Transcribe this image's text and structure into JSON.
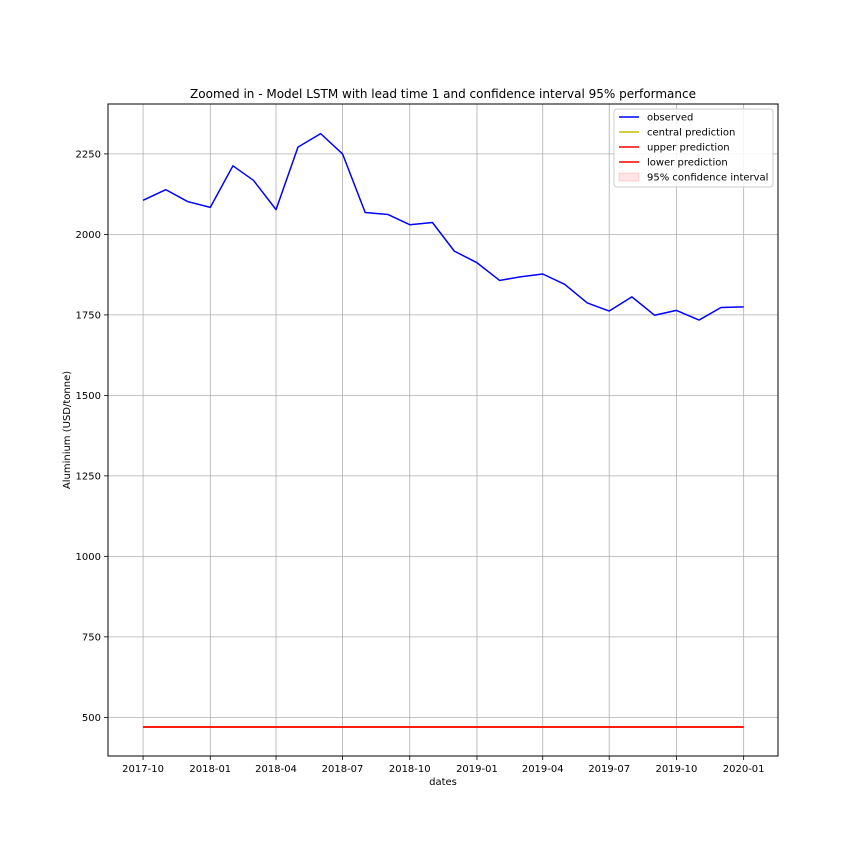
{
  "chart_data": {
    "type": "line",
    "title": "Zoomed in - Model LSTM with lead time 1 and confidence interval 95% performance",
    "xlabel": "dates",
    "ylabel": "Aluminium (USD/tonne)",
    "x": [
      "2017-10",
      "2017-11",
      "2017-12",
      "2018-01",
      "2018-02",
      "2018-03",
      "2018-04",
      "2018-05",
      "2018-06",
      "2018-07",
      "2018-08",
      "2018-09",
      "2018-10",
      "2018-11",
      "2018-12",
      "2019-01",
      "2019-02",
      "2019-03",
      "2019-04",
      "2019-05",
      "2019-06",
      "2019-07",
      "2019-08",
      "2019-09",
      "2019-10",
      "2019-11",
      "2019-12",
      "2020-01"
    ],
    "xticks": [
      "2017-10",
      "2018-01",
      "2018-04",
      "2018-07",
      "2018-10",
      "2019-01",
      "2019-04",
      "2019-07",
      "2019-10",
      "2020-01"
    ],
    "xlim": [
      "2017-08-14",
      "2020-02-17"
    ],
    "yticks": [
      500,
      750,
      1000,
      1250,
      1500,
      1750,
      2000,
      2250
    ],
    "ylim": [
      380,
      2405
    ],
    "grid": true,
    "legend_position": "top-right",
    "series": [
      {
        "name": "observed",
        "color": "#0000ff",
        "values": [
          2106,
          2139,
          2102,
          2084,
          2213,
          2168,
          2077,
          2271,
          2313,
          2250,
          2068,
          2062,
          2030,
          2037,
          1948,
          1912,
          1857,
          1868,
          1877,
          1845,
          1787,
          1762,
          1806,
          1749,
          1764,
          1734,
          1773,
          1775
        ]
      },
      {
        "name": "central prediction",
        "color": "#bfbf00",
        "values": [
          470,
          470,
          470,
          470,
          470,
          470,
          470,
          470,
          470,
          470,
          470,
          470,
          470,
          470,
          470,
          470,
          470,
          470,
          470,
          470,
          470,
          470,
          470,
          470,
          470,
          470,
          470,
          470
        ]
      },
      {
        "name": "upper prediction",
        "color": "#ff0000",
        "values": [
          470,
          470,
          470,
          470,
          470,
          470,
          470,
          470,
          470,
          470,
          470,
          470,
          470,
          470,
          470,
          470,
          470,
          470,
          470,
          470,
          470,
          470,
          470,
          470,
          470,
          470,
          470,
          470
        ]
      },
      {
        "name": "lower prediction",
        "color": "#ff0000",
        "values": [
          470,
          470,
          470,
          470,
          470,
          470,
          470,
          470,
          470,
          470,
          470,
          470,
          470,
          470,
          470,
          470,
          470,
          470,
          470,
          470,
          470,
          470,
          470,
          470,
          470,
          470,
          470,
          470
        ]
      }
    ],
    "confidence_band": {
      "name": "95% confidence interval",
      "color": "#ff0000",
      "opacity": 0.1
    }
  }
}
